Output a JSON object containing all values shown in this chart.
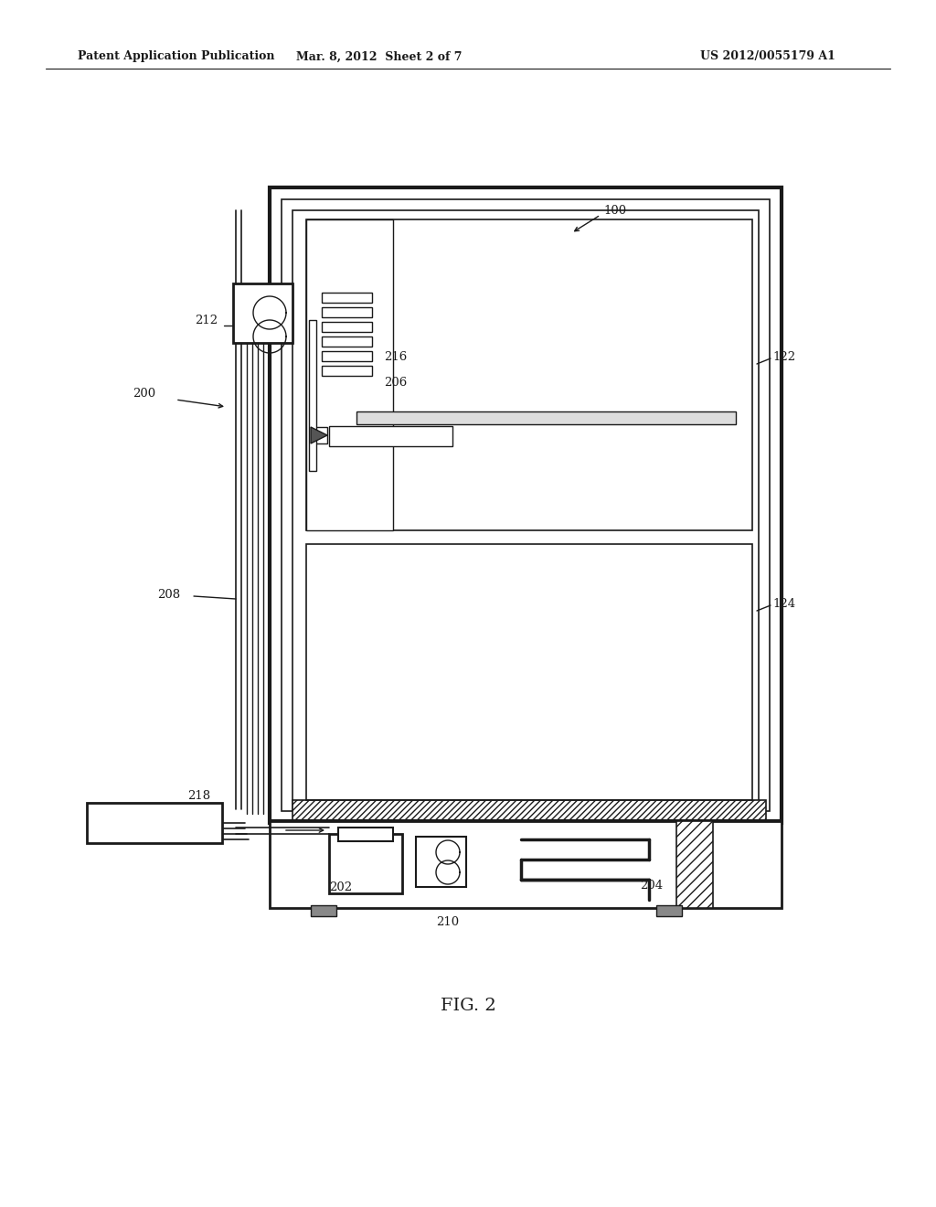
{
  "bg_color": "#ffffff",
  "lc": "#1a1a1a",
  "header_left": "Patent Application Publication",
  "header_mid": "Mar. 8, 2012  Sheet 2 of 7",
  "header_right": "US 2012/0055179 A1",
  "fig_caption": "FIG. 2"
}
